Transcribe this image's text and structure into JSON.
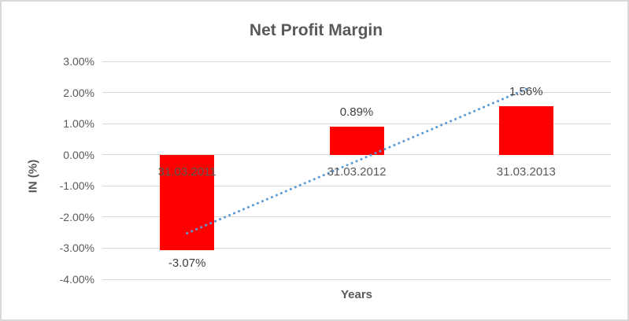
{
  "chart_data": {
    "type": "bar",
    "title": "Net Profit Margin",
    "categories": [
      "31.03.2011",
      "31.03.2012",
      "31.03.2013"
    ],
    "values": [
      -3.07,
      0.89,
      1.56
    ],
    "data_labels": [
      "-3.07%",
      "0.89%",
      "1.56%"
    ],
    "xlabel": "Years",
    "ylabel": "IN (%)",
    "ylim": [
      -4,
      3
    ],
    "ytick_step": 1,
    "ytick_labels_top_to_bottom": [
      "3.00%",
      "2.00%",
      "1.00%",
      "0.00%",
      "-1.00%",
      "-2.00%",
      "-3.00%",
      "-4.00%"
    ],
    "grid": true,
    "legend": "none",
    "bar_color": "#FF0000",
    "trendline": {
      "type": "linear",
      "style": "dotted",
      "color": "#5B9BD5",
      "endpoints_values": [
        -2.52,
        2.11
      ]
    },
    "colors": {
      "title_text": "#595959",
      "axis_text": "#595959",
      "data_label_text": "#404040",
      "gridline": "#d9d9d9",
      "border": "#d9d9d9"
    }
  }
}
